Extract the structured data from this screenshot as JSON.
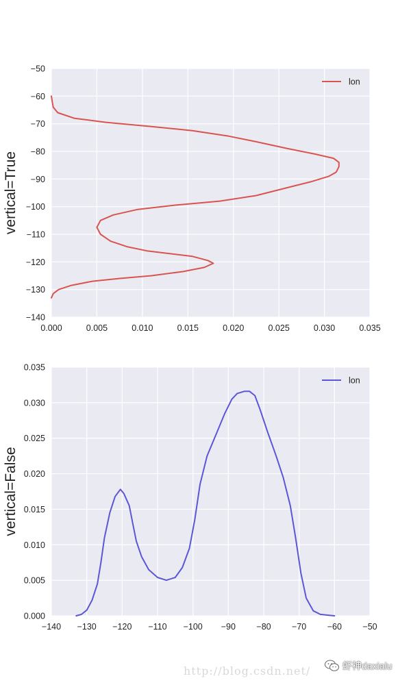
{
  "chart_data": [
    {
      "type": "line",
      "orientation": "vertical",
      "ylabel": "vertical=True",
      "xlim": [
        0.0,
        0.035
      ],
      "ylim": [
        -140,
        -50
      ],
      "x_ticks": [
        "0.000",
        "0.005",
        "0.010",
        "0.015",
        "0.020",
        "0.025",
        "0.030",
        "0.035"
      ],
      "y_ticks": [
        "−50",
        "−60",
        "−70",
        "−80",
        "−90",
        "−100",
        "−110",
        "−120",
        "−130",
        "−140"
      ],
      "grid": true,
      "legend_position": "top-right",
      "series": [
        {
          "name": "lon",
          "color": "#d9534f",
          "points": [
            [
              0.0,
              -133
            ],
            [
              0.0002,
              -131.5
            ],
            [
              0.0008,
              -130
            ],
            [
              0.0022,
              -128.5
            ],
            [
              0.0045,
              -127
            ],
            [
              0.0075,
              -126
            ],
            [
              0.011,
              -125
            ],
            [
              0.0145,
              -123.5
            ],
            [
              0.0168,
              -122
            ],
            [
              0.0178,
              -120.5
            ],
            [
              0.0172,
              -119.5
            ],
            [
              0.0155,
              -118
            ],
            [
              0.013,
              -117
            ],
            [
              0.0105,
              -116
            ],
            [
              0.0083,
              -114.5
            ],
            [
              0.0065,
              -112.5
            ],
            [
              0.0054,
              -110
            ],
            [
              0.005,
              -107.5
            ],
            [
              0.0054,
              -105
            ],
            [
              0.0068,
              -103
            ],
            [
              0.0095,
              -101
            ],
            [
              0.0135,
              -99.5
            ],
            [
              0.0185,
              -98
            ],
            [
              0.0225,
              -96
            ],
            [
              0.0255,
              -93.5
            ],
            [
              0.0285,
              -91
            ],
            [
              0.0305,
              -89
            ],
            [
              0.0313,
              -87.5
            ],
            [
              0.0316,
              -85.5
            ],
            [
              0.0316,
              -84
            ],
            [
              0.031,
              -82.5
            ],
            [
              0.029,
              -81
            ],
            [
              0.026,
              -79
            ],
            [
              0.0225,
              -76.5
            ],
            [
              0.0195,
              -74.5
            ],
            [
              0.0155,
              -72.5
            ],
            [
              0.011,
              -71
            ],
            [
              0.006,
              -69.5
            ],
            [
              0.0025,
              -68
            ],
            [
              0.0007,
              -66
            ],
            [
              0.0002,
              -64
            ],
            [
              0.0001,
              -62
            ],
            [
              0.0,
              -60
            ]
          ]
        }
      ]
    },
    {
      "type": "line",
      "orientation": "horizontal",
      "ylabel": "vertical=False",
      "xlim": [
        -140,
        -50
      ],
      "ylim": [
        0.0,
        0.035
      ],
      "x_ticks": [
        "−140",
        "−130",
        "−120",
        "−110",
        "−100",
        "−90",
        "−80",
        "−70",
        "−60",
        "−50"
      ],
      "y_ticks": [
        "0.000",
        "0.005",
        "0.010",
        "0.015",
        "0.020",
        "0.025",
        "0.030",
        "0.035"
      ],
      "grid": true,
      "legend_position": "top-right",
      "series": [
        {
          "name": "lon",
          "color": "#5b56d6",
          "points": [
            [
              -133,
              0.0
            ],
            [
              -131.5,
              0.0002
            ],
            [
              -130,
              0.0008
            ],
            [
              -128.5,
              0.0022
            ],
            [
              -127,
              0.0045
            ],
            [
              -126,
              0.0075
            ],
            [
              -125,
              0.011
            ],
            [
              -123.5,
              0.0145
            ],
            [
              -122,
              0.0168
            ],
            [
              -120.5,
              0.0178
            ],
            [
              -119.5,
              0.0172
            ],
            [
              -118,
              0.0155
            ],
            [
              -117,
              0.013
            ],
            [
              -116,
              0.0105
            ],
            [
              -114.5,
              0.0083
            ],
            [
              -112.5,
              0.0065
            ],
            [
              -110,
              0.0054
            ],
            [
              -107.5,
              0.005
            ],
            [
              -105,
              0.0054
            ],
            [
              -103,
              0.0068
            ],
            [
              -101,
              0.0095
            ],
            [
              -99.5,
              0.0135
            ],
            [
              -98,
              0.0185
            ],
            [
              -96,
              0.0225
            ],
            [
              -93.5,
              0.0255
            ],
            [
              -91,
              0.0285
            ],
            [
              -89,
              0.0305
            ],
            [
              -87.5,
              0.0313
            ],
            [
              -85.5,
              0.0316
            ],
            [
              -84,
              0.0316
            ],
            [
              -82.5,
              0.031
            ],
            [
              -81,
              0.029
            ],
            [
              -79,
              0.026
            ],
            [
              -76.5,
              0.0225
            ],
            [
              -74.5,
              0.0195
            ],
            [
              -72.5,
              0.0155
            ],
            [
              -71,
              0.011
            ],
            [
              -69.5,
              0.006
            ],
            [
              -68,
              0.0025
            ],
            [
              -66,
              0.0007
            ],
            [
              -64,
              0.0002
            ],
            [
              -62,
              0.0001
            ],
            [
              -60,
              0.0
            ]
          ]
        }
      ]
    }
  ],
  "watermark": {
    "url_text": "http://blog.csdn.net/",
    "brand_text": "虾神daxialu",
    "icon": "wechat-icon"
  }
}
